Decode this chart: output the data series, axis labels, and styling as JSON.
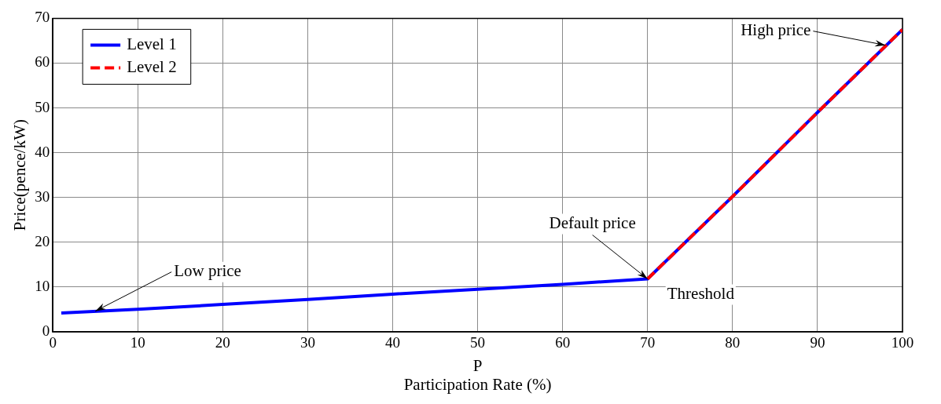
{
  "chart_data": {
    "type": "line",
    "xlabel": "P\nParticipation Rate (%)",
    "ylabel": "Price(pence/kW)",
    "xlim": [
      0,
      100
    ],
    "xticks": [
      0,
      10,
      20,
      30,
      40,
      50,
      60,
      70,
      80,
      90,
      100
    ],
    "ylim": [
      0,
      70
    ],
    "yticks": [
      0,
      10,
      20,
      30,
      40,
      50,
      60,
      70
    ],
    "grid": true,
    "legend": "top left",
    "marker": "none",
    "series": [
      {
        "name": "Level 1",
        "color": "#0000ff",
        "line_style": "solid",
        "x": [
          1,
          10,
          20,
          30,
          40,
          50,
          60,
          70,
          80,
          90,
          100
        ],
        "values": [
          4.2,
          5.0,
          6.1,
          7.2,
          8.4,
          9.5,
          10.6,
          11.8,
          30.2,
          49,
          67.5
        ]
      },
      {
        "name": "Level 2",
        "color": "#ff0000",
        "line_style": "dashed",
        "x": [
          70,
          80,
          90,
          100
        ],
        "values": [
          11.8,
          30.2,
          49,
          67.5
        ]
      }
    ],
    "annotations": [
      {
        "text": "Low price",
        "x": 5,
        "y": 4.6
      },
      {
        "text": "Default price",
        "x": 70,
        "y": 11.8
      },
      {
        "text": "Threshold",
        "x": 70,
        "y": 11.8
      },
      {
        "text": "High price",
        "x": 98,
        "y": 64
      }
    ]
  }
}
